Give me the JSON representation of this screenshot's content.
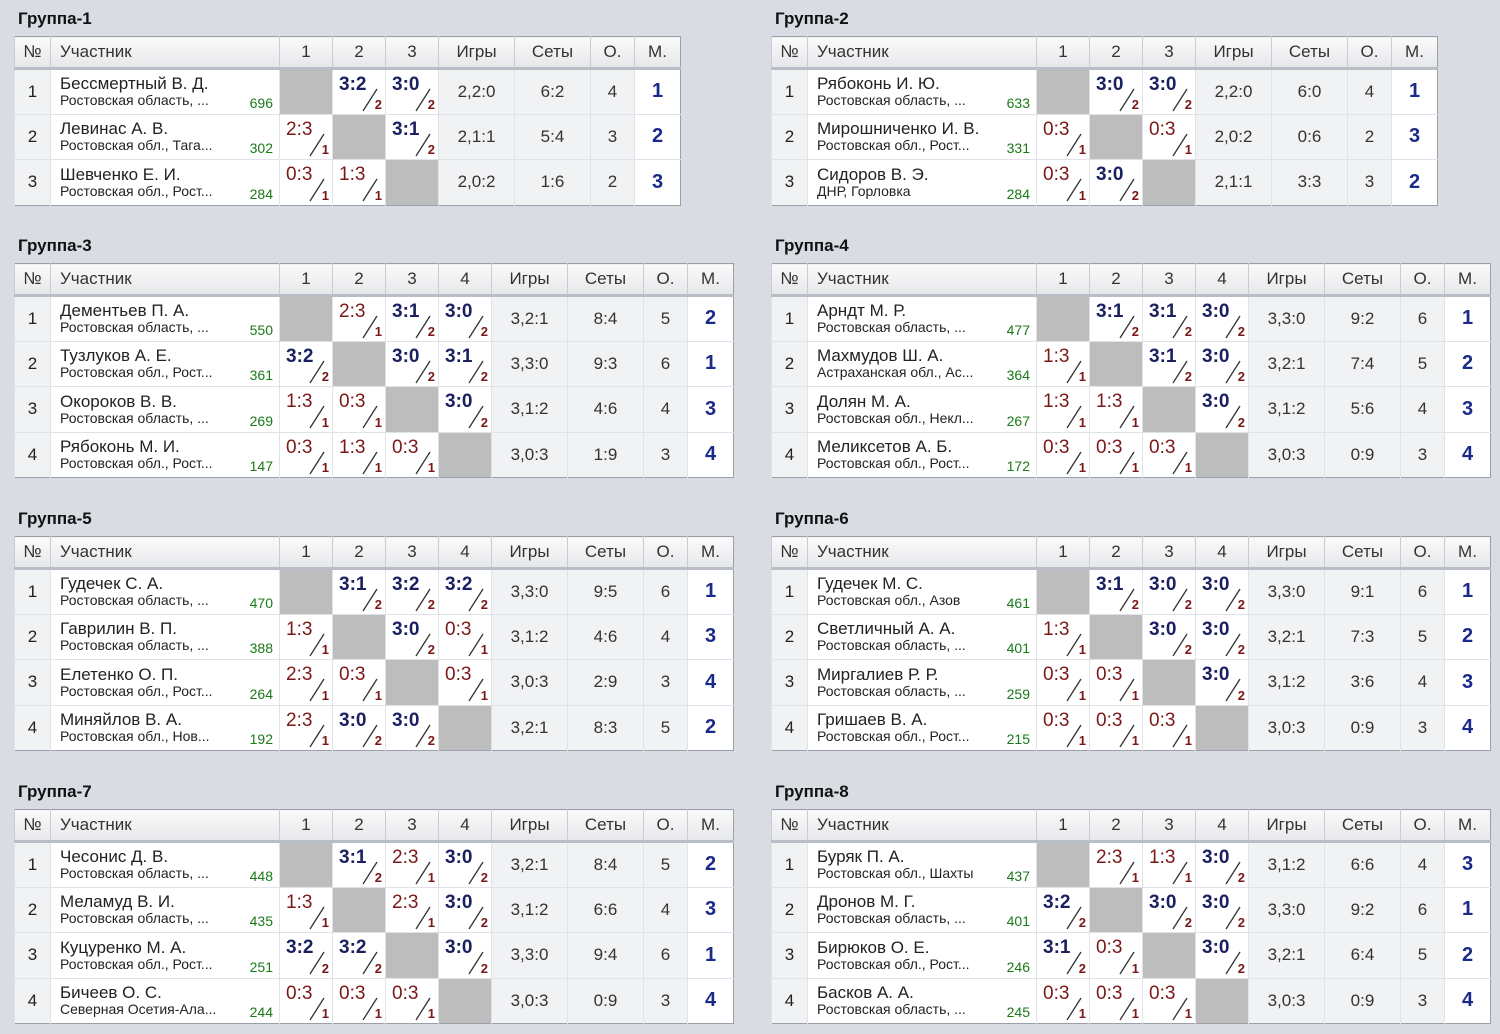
{
  "headers": {
    "no": "№",
    "name": "Участник",
    "games": "Игры",
    "sets": "Сеты",
    "points": "О.",
    "place": "М."
  },
  "groups": [
    {
      "title": "Группа-1",
      "cols": [
        "1",
        "2",
        "3"
      ],
      "players": [
        {
          "n": "1",
          "name": "Бессмертный В. Д.",
          "region": "Ростовская область, ...",
          "rating": "696",
          "res": [
            null,
            [
              "3:2",
              "2",
              "w"
            ],
            [
              "3:0",
              "2",
              "w"
            ]
          ],
          "games": "2,2:0",
          "sets": "6:2",
          "pts": "4",
          "place": "1"
        },
        {
          "n": "2",
          "name": "Левинас А. В.",
          "region": "Ростовская обл., Тага...",
          "rating": "302",
          "res": [
            [
              "2:3",
              "1",
              "l"
            ],
            null,
            [
              "3:1",
              "2",
              "w"
            ]
          ],
          "games": "2,1:1",
          "sets": "5:4",
          "pts": "3",
          "place": "2"
        },
        {
          "n": "3",
          "name": "Шевченко Е. И.",
          "region": "Ростовская обл., Рост...",
          "rating": "284",
          "res": [
            [
              "0:3",
              "1",
              "l"
            ],
            [
              "1:3",
              "1",
              "l"
            ],
            null
          ],
          "games": "2,0:2",
          "sets": "1:6",
          "pts": "2",
          "place": "3"
        }
      ]
    },
    {
      "title": "Группа-2",
      "cols": [
        "1",
        "2",
        "3"
      ],
      "players": [
        {
          "n": "1",
          "name": "Рябоконь И. Ю.",
          "region": "Ростовская область, ...",
          "rating": "633",
          "res": [
            null,
            [
              "3:0",
              "2",
              "w"
            ],
            [
              "3:0",
              "2",
              "w"
            ]
          ],
          "games": "2,2:0",
          "sets": "6:0",
          "pts": "4",
          "place": "1"
        },
        {
          "n": "2",
          "name": "Мирошниченко И. В.",
          "region": "Ростовская обл., Рост...",
          "rating": "331",
          "res": [
            [
              "0:3",
              "1",
              "l"
            ],
            null,
            [
              "0:3",
              "1",
              "l"
            ]
          ],
          "games": "2,0:2",
          "sets": "0:6",
          "pts": "2",
          "place": "3"
        },
        {
          "n": "3",
          "name": "Сидоров В. Э.",
          "region": "ДНР, Горловка",
          "rating": "284",
          "res": [
            [
              "0:3",
              "1",
              "l"
            ],
            [
              "3:0",
              "2",
              "w"
            ],
            null
          ],
          "games": "2,1:1",
          "sets": "3:3",
          "pts": "3",
          "place": "2"
        }
      ]
    },
    {
      "title": "Группа-3",
      "cols": [
        "1",
        "2",
        "3",
        "4"
      ],
      "players": [
        {
          "n": "1",
          "name": "Дементьев П. А.",
          "region": "Ростовская область, ...",
          "rating": "550",
          "res": [
            null,
            [
              "2:3",
              "1",
              "l"
            ],
            [
              "3:1",
              "2",
              "w"
            ],
            [
              "3:0",
              "2",
              "w"
            ]
          ],
          "games": "3,2:1",
          "sets": "8:4",
          "pts": "5",
          "place": "2"
        },
        {
          "n": "2",
          "name": "Тузлуков А. Е.",
          "region": "Ростовская обл., Рост...",
          "rating": "361",
          "res": [
            [
              "3:2",
              "2",
              "w"
            ],
            null,
            [
              "3:0",
              "2",
              "w"
            ],
            [
              "3:1",
              "2",
              "w"
            ]
          ],
          "games": "3,3:0",
          "sets": "9:3",
          "pts": "6",
          "place": "1"
        },
        {
          "n": "3",
          "name": "Окороков В. В.",
          "region": "Ростовская область, ...",
          "rating": "269",
          "res": [
            [
              "1:3",
              "1",
              "l"
            ],
            [
              "0:3",
              "1",
              "l"
            ],
            null,
            [
              "3:0",
              "2",
              "w"
            ]
          ],
          "games": "3,1:2",
          "sets": "4:6",
          "pts": "4",
          "place": "3"
        },
        {
          "n": "4",
          "name": "Рябоконь М. И.",
          "region": "Ростовская обл., Рост...",
          "rating": "147",
          "res": [
            [
              "0:3",
              "1",
              "l"
            ],
            [
              "1:3",
              "1",
              "l"
            ],
            [
              "0:3",
              "1",
              "l"
            ],
            null
          ],
          "games": "3,0:3",
          "sets": "1:9",
          "pts": "3",
          "place": "4"
        }
      ]
    },
    {
      "title": "Группа-4",
      "cols": [
        "1",
        "2",
        "3",
        "4"
      ],
      "players": [
        {
          "n": "1",
          "name": "Арндт М. Р.",
          "region": "Ростовская область, ...",
          "rating": "477",
          "res": [
            null,
            [
              "3:1",
              "2",
              "w"
            ],
            [
              "3:1",
              "2",
              "w"
            ],
            [
              "3:0",
              "2",
              "w"
            ]
          ],
          "games": "3,3:0",
          "sets": "9:2",
          "pts": "6",
          "place": "1"
        },
        {
          "n": "2",
          "name": "Махмудов Ш. А.",
          "region": "Астраханская обл., Ас...",
          "rating": "364",
          "res": [
            [
              "1:3",
              "1",
              "l"
            ],
            null,
            [
              "3:1",
              "2",
              "w"
            ],
            [
              "3:0",
              "2",
              "w"
            ]
          ],
          "games": "3,2:1",
          "sets": "7:4",
          "pts": "5",
          "place": "2"
        },
        {
          "n": "3",
          "name": "Долян М. А.",
          "region": "Ростовская обл., Некл...",
          "rating": "267",
          "res": [
            [
              "1:3",
              "1",
              "l"
            ],
            [
              "1:3",
              "1",
              "l"
            ],
            null,
            [
              "3:0",
              "2",
              "w"
            ]
          ],
          "games": "3,1:2",
          "sets": "5:6",
          "pts": "4",
          "place": "3"
        },
        {
          "n": "4",
          "name": "Меликсетов А. Б.",
          "region": "Ростовская обл., Рост...",
          "rating": "172",
          "res": [
            [
              "0:3",
              "1",
              "l"
            ],
            [
              "0:3",
              "1",
              "l"
            ],
            [
              "0:3",
              "1",
              "l"
            ],
            null
          ],
          "games": "3,0:3",
          "sets": "0:9",
          "pts": "3",
          "place": "4"
        }
      ]
    },
    {
      "title": "Группа-5",
      "cols": [
        "1",
        "2",
        "3",
        "4"
      ],
      "players": [
        {
          "n": "1",
          "name": "Гудечек С. А.",
          "region": "Ростовская область, ...",
          "rating": "470",
          "res": [
            null,
            [
              "3:1",
              "2",
              "w"
            ],
            [
              "3:2",
              "2",
              "w"
            ],
            [
              "3:2",
              "2",
              "w"
            ]
          ],
          "games": "3,3:0",
          "sets": "9:5",
          "pts": "6",
          "place": "1"
        },
        {
          "n": "2",
          "name": "Гаврилин В. П.",
          "region": "Ростовская область, ...",
          "rating": "388",
          "res": [
            [
              "1:3",
              "1",
              "l"
            ],
            null,
            [
              "3:0",
              "2",
              "w"
            ],
            [
              "0:3",
              "1",
              "l"
            ]
          ],
          "games": "3,1:2",
          "sets": "4:6",
          "pts": "4",
          "place": "3"
        },
        {
          "n": "3",
          "name": "Елетенко О. П.",
          "region": "Ростовская обл., Рост...",
          "rating": "264",
          "res": [
            [
              "2:3",
              "1",
              "l"
            ],
            [
              "0:3",
              "1",
              "l"
            ],
            null,
            [
              "0:3",
              "1",
              "l"
            ]
          ],
          "games": "3,0:3",
          "sets": "2:9",
          "pts": "3",
          "place": "4"
        },
        {
          "n": "4",
          "name": "Миняйлов В. А.",
          "region": "Ростовская обл., Нов...",
          "rating": "192",
          "res": [
            [
              "2:3",
              "1",
              "l"
            ],
            [
              "3:0",
              "2",
              "w"
            ],
            [
              "3:0",
              "2",
              "w"
            ],
            null
          ],
          "games": "3,2:1",
          "sets": "8:3",
          "pts": "5",
          "place": "2"
        }
      ]
    },
    {
      "title": "Группа-6",
      "cols": [
        "1",
        "2",
        "3",
        "4"
      ],
      "players": [
        {
          "n": "1",
          "name": "Гудечек М. С.",
          "region": "Ростовская обл., Азов",
          "rating": "461",
          "res": [
            null,
            [
              "3:1",
              "2",
              "w"
            ],
            [
              "3:0",
              "2",
              "w"
            ],
            [
              "3:0",
              "2",
              "w"
            ]
          ],
          "games": "3,3:0",
          "sets": "9:1",
          "pts": "6",
          "place": "1"
        },
        {
          "n": "2",
          "name": "Светличный А. А.",
          "region": "Ростовская область, ...",
          "rating": "401",
          "res": [
            [
              "1:3",
              "1",
              "l"
            ],
            null,
            [
              "3:0",
              "2",
              "w"
            ],
            [
              "3:0",
              "2",
              "w"
            ]
          ],
          "games": "3,2:1",
          "sets": "7:3",
          "pts": "5",
          "place": "2"
        },
        {
          "n": "3",
          "name": "Миргалиев Р. Р.",
          "region": "Ростовская область, ...",
          "rating": "259",
          "res": [
            [
              "0:3",
              "1",
              "l"
            ],
            [
              "0:3",
              "1",
              "l"
            ],
            null,
            [
              "3:0",
              "2",
              "w"
            ]
          ],
          "games": "3,1:2",
          "sets": "3:6",
          "pts": "4",
          "place": "3"
        },
        {
          "n": "4",
          "name": "Гришаев В. А.",
          "region": "Ростовская обл., Рост...",
          "rating": "215",
          "res": [
            [
              "0:3",
              "1",
              "l"
            ],
            [
              "0:3",
              "1",
              "l"
            ],
            [
              "0:3",
              "1",
              "l"
            ],
            null
          ],
          "games": "3,0:3",
          "sets": "0:9",
          "pts": "3",
          "place": "4"
        }
      ]
    },
    {
      "title": "Группа-7",
      "cols": [
        "1",
        "2",
        "3",
        "4"
      ],
      "players": [
        {
          "n": "1",
          "name": "Чесонис Д. В.",
          "region": "Ростовская область, ...",
          "rating": "448",
          "res": [
            null,
            [
              "3:1",
              "2",
              "w"
            ],
            [
              "2:3",
              "1",
              "l"
            ],
            [
              "3:0",
              "2",
              "w"
            ]
          ],
          "games": "3,2:1",
          "sets": "8:4",
          "pts": "5",
          "place": "2"
        },
        {
          "n": "2",
          "name": "Меламуд В. И.",
          "region": "Ростовская область, ...",
          "rating": "435",
          "res": [
            [
              "1:3",
              "1",
              "l"
            ],
            null,
            [
              "2:3",
              "1",
              "l"
            ],
            [
              "3:0",
              "2",
              "w"
            ]
          ],
          "games": "3,1:2",
          "sets": "6:6",
          "pts": "4",
          "place": "3"
        },
        {
          "n": "3",
          "name": "Куцуренко М. А.",
          "region": "Ростовская обл., Рост...",
          "rating": "251",
          "res": [
            [
              "3:2",
              "2",
              "w"
            ],
            [
              "3:2",
              "2",
              "w"
            ],
            null,
            [
              "3:0",
              "2",
              "w"
            ]
          ],
          "games": "3,3:0",
          "sets": "9:4",
          "pts": "6",
          "place": "1"
        },
        {
          "n": "4",
          "name": "Бичеев О. С.",
          "region": "Северная Осетия-Ала...",
          "rating": "244",
          "res": [
            [
              "0:3",
              "1",
              "l"
            ],
            [
              "0:3",
              "1",
              "l"
            ],
            [
              "0:3",
              "1",
              "l"
            ],
            null
          ],
          "games": "3,0:3",
          "sets": "0:9",
          "pts": "3",
          "place": "4"
        }
      ]
    },
    {
      "title": "Группа-8",
      "cols": [
        "1",
        "2",
        "3",
        "4"
      ],
      "players": [
        {
          "n": "1",
          "name": "Буряк П. А.",
          "region": "Ростовская обл., Шахты",
          "rating": "437",
          "res": [
            null,
            [
              "2:3",
              "1",
              "l"
            ],
            [
              "1:3",
              "1",
              "l"
            ],
            [
              "3:0",
              "2",
              "w"
            ]
          ],
          "games": "3,1:2",
          "sets": "6:6",
          "pts": "4",
          "place": "3"
        },
        {
          "n": "2",
          "name": "Дронов М. Г.",
          "region": "Ростовская область, ...",
          "rating": "401",
          "res": [
            [
              "3:2",
              "2",
              "w"
            ],
            null,
            [
              "3:0",
              "2",
              "w"
            ],
            [
              "3:0",
              "2",
              "w"
            ]
          ],
          "games": "3,3:0",
          "sets": "9:2",
          "pts": "6",
          "place": "1"
        },
        {
          "n": "3",
          "name": "Бирюков О. Е.",
          "region": "Ростовская обл., Рост...",
          "rating": "246",
          "res": [
            [
              "3:1",
              "2",
              "w"
            ],
            [
              "0:3",
              "1",
              "l"
            ],
            null,
            [
              "3:0",
              "2",
              "w"
            ]
          ],
          "games": "3,2:1",
          "sets": "6:4",
          "pts": "5",
          "place": "2"
        },
        {
          "n": "4",
          "name": "Басков А. А.",
          "region": "Ростовская область, ...",
          "rating": "245",
          "res": [
            [
              "0:3",
              "1",
              "l"
            ],
            [
              "0:3",
              "1",
              "l"
            ],
            [
              "0:3",
              "1",
              "l"
            ],
            null
          ],
          "games": "3,0:3",
          "sets": "0:9",
          "pts": "3",
          "place": "4"
        }
      ]
    }
  ]
}
